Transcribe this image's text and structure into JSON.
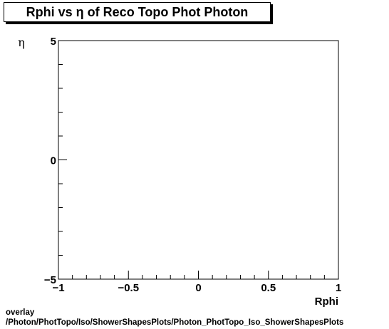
{
  "title": "Rphi vs  η of Reco Topo Phot Photon",
  "footer": {
    "line1": "overlay",
    "line2": "/Photon/PhotTopo/Iso/ShowerShapesPlots/Photon_PhotTopo_Iso_ShowerShapesPlots"
  },
  "chart_data": {
    "type": "scatter",
    "title": "Rphi vs  η of Reco Topo Phot Photon",
    "xlabel": "Rphi",
    "ylabel": "η",
    "xlim": [
      -1,
      1
    ],
    "ylim": [
      -5,
      5
    ],
    "x_ticks": [
      -1,
      -0.5,
      0,
      0.5,
      1
    ],
    "x_tick_labels": [
      "−1",
      "−0.5",
      "0",
      "0.5",
      "1"
    ],
    "y_ticks": [
      -5,
      0,
      5
    ],
    "y_tick_labels": [
      "−5",
      "0",
      "5"
    ],
    "x_minor_step": 0.1,
    "y_minor_step": 1,
    "grid": false,
    "legend": "none",
    "series": [],
    "colors": {
      "frame": "#000000",
      "background": "#ffffff"
    }
  }
}
